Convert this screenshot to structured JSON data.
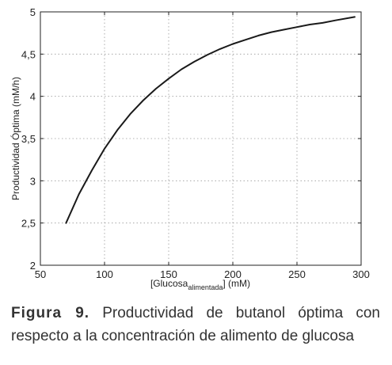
{
  "chart_data": {
    "type": "line",
    "xlabel": "[Glucosa",
    "xlabel_sub": "alimentada",
    "xlabel_suffix": "] (mM)",
    "ylabel": "Productividad Óptima (mM/h)",
    "xlim": [
      50,
      300
    ],
    "ylim": [
      2,
      5
    ],
    "x_ticks": [
      "50",
      "100",
      "150",
      "200",
      "250",
      "300"
    ],
    "y_ticks": [
      "2",
      "2,5",
      "3",
      "3,5",
      "4",
      "4,5",
      "5"
    ],
    "grid": true,
    "line_color": "#1a1a1a",
    "series": [
      {
        "x": [
          70,
          80,
          90,
          100,
          110,
          120,
          130,
          140,
          150,
          160,
          170,
          180,
          190,
          200,
          210,
          220,
          230,
          240,
          250,
          260,
          270,
          280,
          295
        ],
        "y": [
          2.5,
          2.84,
          3.12,
          3.38,
          3.6,
          3.79,
          3.95,
          4.09,
          4.21,
          4.32,
          4.41,
          4.49,
          4.56,
          4.62,
          4.67,
          4.72,
          4.76,
          4.79,
          4.82,
          4.85,
          4.87,
          4.9,
          4.94
        ]
      }
    ]
  },
  "caption": {
    "lead": "Figura 9.",
    "text": "Productividad de butanol óptima con respecto a la concentración de alimento de glucosa"
  }
}
